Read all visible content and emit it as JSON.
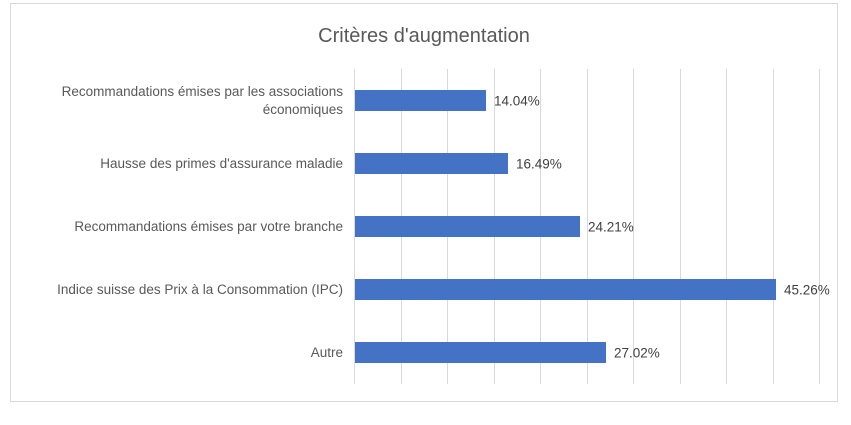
{
  "chart_data": {
    "type": "bar",
    "orientation": "horizontal",
    "title": "Critères d'augmentation",
    "categories": [
      "Recommandations émises par les associations économiques",
      "Hausse des primes d'assurance maladie",
      "Recommandations émises par votre branche",
      "Indice suisse des Prix à la Consommation (IPC)",
      "Autre"
    ],
    "values": [
      14.04,
      16.49,
      24.21,
      45.26,
      27.02
    ],
    "value_labels": [
      "14.04%",
      "16.49%",
      "24.21%",
      "45.26%",
      "27.02%"
    ],
    "xlabel": "",
    "ylabel": "",
    "xlim": [
      0,
      50
    ],
    "gridline_interval": 5,
    "grid": true,
    "legend": false,
    "axis_tick_labels_visible": false,
    "colors": {
      "bar": "#4472C4",
      "gridline": "#D9D9D9",
      "chart_border": "#D9D9D9",
      "title_text": "#595959",
      "category_text": "#595959",
      "data_label_text": "#404040",
      "background": "#FFFFFF"
    }
  }
}
